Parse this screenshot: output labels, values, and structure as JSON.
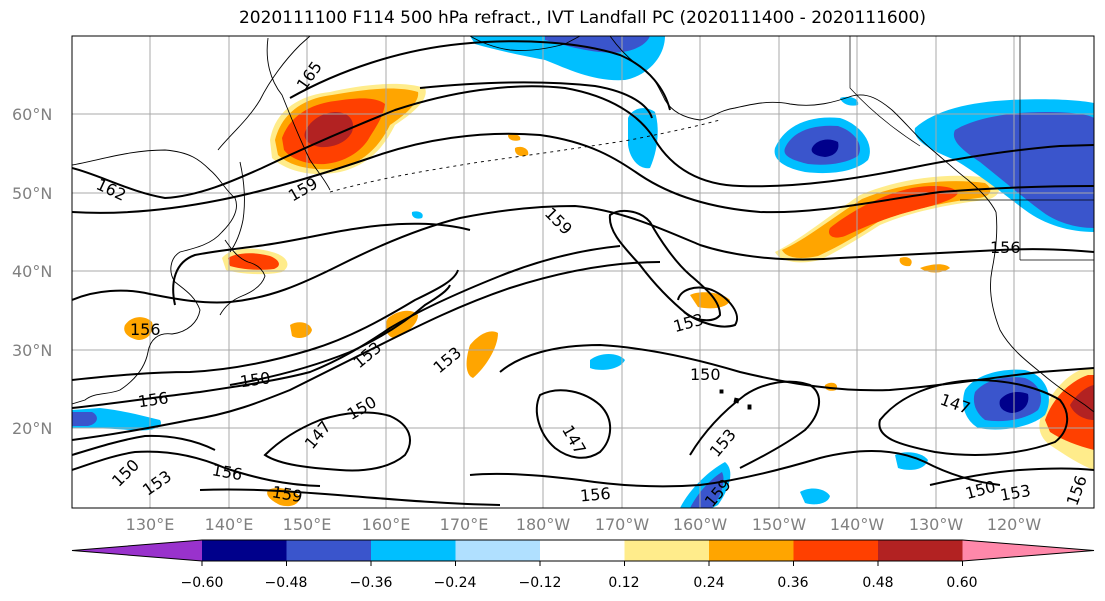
{
  "map": {
    "title": "2020111100 F114 500 hPa refract., IVT Landfall PC (2020111400 - 2020111600)",
    "lat_labels": [
      "60°N",
      "50°N",
      "40°N",
      "30°N",
      "20°N"
    ],
    "lon_labels": [
      "130°E",
      "140°E",
      "150°E",
      "160°E",
      "170°E",
      "180°W",
      "170°W",
      "160°W",
      "150°W",
      "140°W",
      "130°W",
      "120°W"
    ],
    "contour_labels": [
      "165",
      "162",
      "159",
      "159",
      "156",
      "153",
      "153",
      "153",
      "150",
      "150",
      "150",
      "150",
      "156",
      "147",
      "147",
      "147",
      "153",
      "159",
      "156",
      "156",
      "159",
      "150",
      "153",
      "156",
      "156",
      "153"
    ],
    "colorbar": {
      "ticks": [
        "−0.60",
        "−0.48",
        "−0.36",
        "−0.24",
        "−0.12",
        "0.12",
        "0.24",
        "0.36",
        "0.48",
        "0.60"
      ],
      "colors": [
        "#9932cc",
        "#00008b",
        "#3a55cc",
        "#00bfff",
        "#b0e0ff",
        "#ffffff",
        "#ffec8b",
        "#ffa500",
        "#ff4000",
        "#b22222",
        "#ff88aa"
      ]
    },
    "colors": {
      "neg_strong": "#00008b",
      "neg_mid": "#3a55cc",
      "neg_light": "#00bfff",
      "neg_faint": "#b0e0ff",
      "pos_faint": "#ffec8b",
      "pos_light": "#ffa500",
      "pos_mid": "#ff4000",
      "pos_strong": "#b22222"
    }
  }
}
